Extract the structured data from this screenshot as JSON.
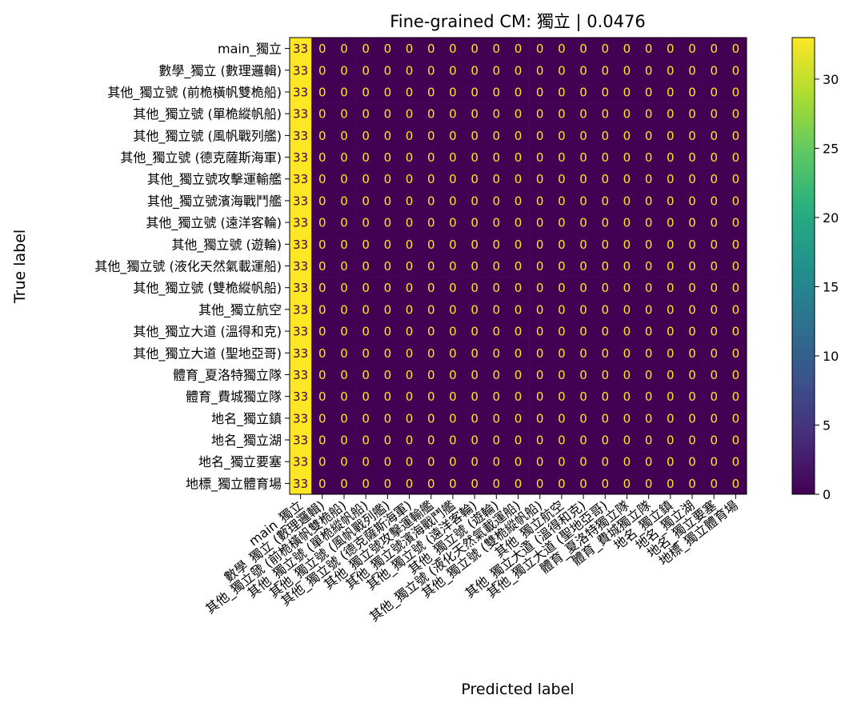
{
  "chart_data": {
    "type": "heatmap",
    "title": "Fine-grained CM: 獨立 | 0.0476",
    "xlabel": "Predicted label",
    "ylabel": "True label",
    "labels": [
      "main_獨立",
      "數學_獨立 (數理邏輯)",
      "其他_獨立號 (前桅橫帆雙桅船)",
      "其他_獨立號 (單桅縱帆船)",
      "其他_獨立號 (風帆戰列艦)",
      "其他_獨立號 (德克薩斯海軍)",
      "其他_獨立號攻擊運輸艦",
      "其他_獨立號濱海戰鬥艦",
      "其他_獨立號 (遠洋客輪)",
      "其他_獨立號 (遊輪)",
      "其他_獨立號 (液化天然氣載運船)",
      "其他_獨立號 (雙桅縱帆船)",
      "其他_獨立航空",
      "其他_獨立大道 (溫得和克)",
      "其他_獨立大道 (聖地亞哥)",
      "體育_夏洛特獨立隊",
      "體育_費城獨立隊",
      "地名_獨立鎮",
      "地名_獨立湖",
      "地名_獨立要塞",
      "地標_獨立體育場"
    ],
    "matrix": [
      [
        33,
        0,
        0,
        0,
        0,
        0,
        0,
        0,
        0,
        0,
        0,
        0,
        0,
        0,
        0,
        0,
        0,
        0,
        0,
        0,
        0
      ],
      [
        33,
        0,
        0,
        0,
        0,
        0,
        0,
        0,
        0,
        0,
        0,
        0,
        0,
        0,
        0,
        0,
        0,
        0,
        0,
        0,
        0
      ],
      [
        33,
        0,
        0,
        0,
        0,
        0,
        0,
        0,
        0,
        0,
        0,
        0,
        0,
        0,
        0,
        0,
        0,
        0,
        0,
        0,
        0
      ],
      [
        33,
        0,
        0,
        0,
        0,
        0,
        0,
        0,
        0,
        0,
        0,
        0,
        0,
        0,
        0,
        0,
        0,
        0,
        0,
        0,
        0
      ],
      [
        33,
        0,
        0,
        0,
        0,
        0,
        0,
        0,
        0,
        0,
        0,
        0,
        0,
        0,
        0,
        0,
        0,
        0,
        0,
        0,
        0
      ],
      [
        33,
        0,
        0,
        0,
        0,
        0,
        0,
        0,
        0,
        0,
        0,
        0,
        0,
        0,
        0,
        0,
        0,
        0,
        0,
        0,
        0
      ],
      [
        33,
        0,
        0,
        0,
        0,
        0,
        0,
        0,
        0,
        0,
        0,
        0,
        0,
        0,
        0,
        0,
        0,
        0,
        0,
        0,
        0
      ],
      [
        33,
        0,
        0,
        0,
        0,
        0,
        0,
        0,
        0,
        0,
        0,
        0,
        0,
        0,
        0,
        0,
        0,
        0,
        0,
        0,
        0
      ],
      [
        33,
        0,
        0,
        0,
        0,
        0,
        0,
        0,
        0,
        0,
        0,
        0,
        0,
        0,
        0,
        0,
        0,
        0,
        0,
        0,
        0
      ],
      [
        33,
        0,
        0,
        0,
        0,
        0,
        0,
        0,
        0,
        0,
        0,
        0,
        0,
        0,
        0,
        0,
        0,
        0,
        0,
        0,
        0
      ],
      [
        33,
        0,
        0,
        0,
        0,
        0,
        0,
        0,
        0,
        0,
        0,
        0,
        0,
        0,
        0,
        0,
        0,
        0,
        0,
        0,
        0
      ],
      [
        33,
        0,
        0,
        0,
        0,
        0,
        0,
        0,
        0,
        0,
        0,
        0,
        0,
        0,
        0,
        0,
        0,
        0,
        0,
        0,
        0
      ],
      [
        33,
        0,
        0,
        0,
        0,
        0,
        0,
        0,
        0,
        0,
        0,
        0,
        0,
        0,
        0,
        0,
        0,
        0,
        0,
        0,
        0
      ],
      [
        33,
        0,
        0,
        0,
        0,
        0,
        0,
        0,
        0,
        0,
        0,
        0,
        0,
        0,
        0,
        0,
        0,
        0,
        0,
        0,
        0
      ],
      [
        33,
        0,
        0,
        0,
        0,
        0,
        0,
        0,
        0,
        0,
        0,
        0,
        0,
        0,
        0,
        0,
        0,
        0,
        0,
        0,
        0
      ],
      [
        33,
        0,
        0,
        0,
        0,
        0,
        0,
        0,
        0,
        0,
        0,
        0,
        0,
        0,
        0,
        0,
        0,
        0,
        0,
        0,
        0
      ],
      [
        33,
        0,
        0,
        0,
        0,
        0,
        0,
        0,
        0,
        0,
        0,
        0,
        0,
        0,
        0,
        0,
        0,
        0,
        0,
        0,
        0
      ],
      [
        33,
        0,
        0,
        0,
        0,
        0,
        0,
        0,
        0,
        0,
        0,
        0,
        0,
        0,
        0,
        0,
        0,
        0,
        0,
        0,
        0
      ],
      [
        33,
        0,
        0,
        0,
        0,
        0,
        0,
        0,
        0,
        0,
        0,
        0,
        0,
        0,
        0,
        0,
        0,
        0,
        0,
        0,
        0
      ],
      [
        33,
        0,
        0,
        0,
        0,
        0,
        0,
        0,
        0,
        0,
        0,
        0,
        0,
        0,
        0,
        0,
        0,
        0,
        0,
        0,
        0
      ],
      [
        33,
        0,
        0,
        0,
        0,
        0,
        0,
        0,
        0,
        0,
        0,
        0,
        0,
        0,
        0,
        0,
        0,
        0,
        0,
        0,
        0
      ]
    ],
    "colorbar": {
      "min": 0,
      "max": 33,
      "ticks": [
        0,
        5,
        10,
        15,
        20,
        25,
        30
      ]
    },
    "colormap": "viridis",
    "colors": {
      "low": "#440154",
      "high": "#fde725",
      "text_on_low": "#fde725",
      "text_on_high": "#440154"
    },
    "grid": false,
    "legend": "colorbar-right"
  }
}
